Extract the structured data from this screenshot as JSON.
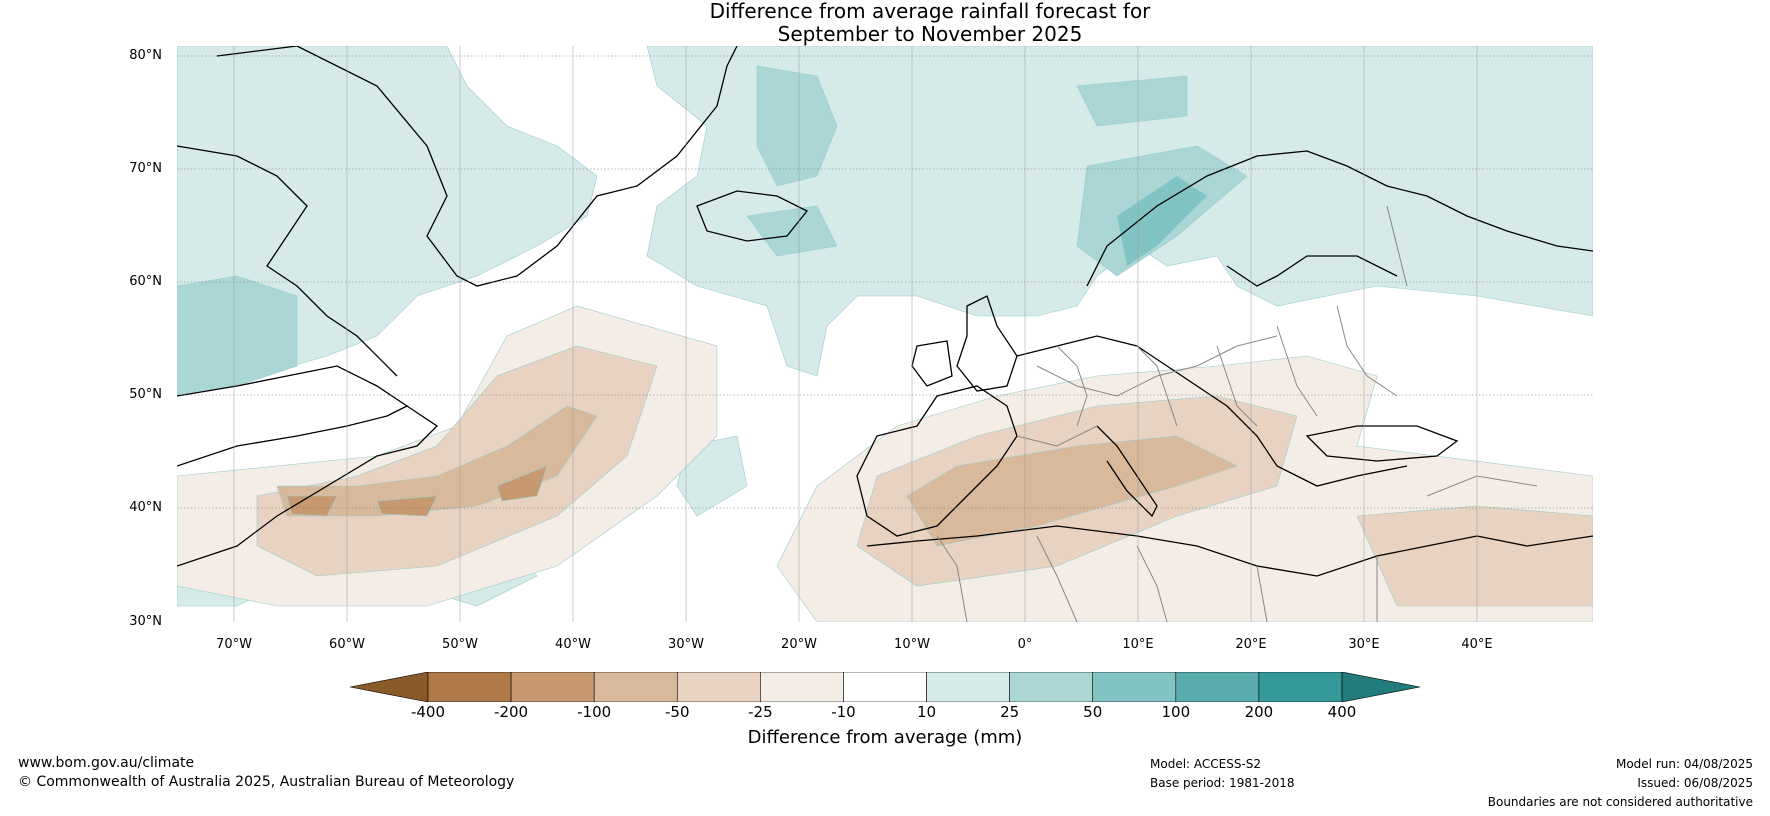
{
  "title_line1": "Difference from average rainfall forecast for",
  "title_line2": "September to November 2025",
  "lat_labels": [
    "80°N",
    "70°N",
    "60°N",
    "50°N",
    "40°N",
    "30°N"
  ],
  "lon_labels": [
    "70°W",
    "60°W",
    "50°W",
    "40°W",
    "30°W",
    "20°W",
    "10°W",
    "0°",
    "10°E",
    "20°E",
    "30°E",
    "40°E"
  ],
  "colorbar": {
    "ticks": [
      "-400",
      "-200",
      "-100",
      "-50",
      "-25",
      "-10",
      "10",
      "25",
      "50",
      "100",
      "200",
      "400"
    ],
    "colors": [
      "#8b5a2b",
      "#b07a48",
      "#c89970",
      "#d9b99b",
      "#e8d3c2",
      "#f4ede6",
      "#ffffff",
      "#d6eaea",
      "#aad6d6",
      "#82c4c3",
      "#5aadad",
      "#35999a",
      "#237c7c"
    ],
    "label": "Difference from average (mm)"
  },
  "footer": {
    "website": "www.bom.gov.au/climate",
    "copyright": "© Commonwealth of Australia 2025, Australian Bureau of Meteorology",
    "model": "Model: ACCESS-S2",
    "base_period": "Base period: 1981-2018",
    "model_run": "Model run: 04/08/2025",
    "issued": "Issued: 06/08/2025",
    "disclaimer": "Boundaries are not considered authoritative"
  }
}
